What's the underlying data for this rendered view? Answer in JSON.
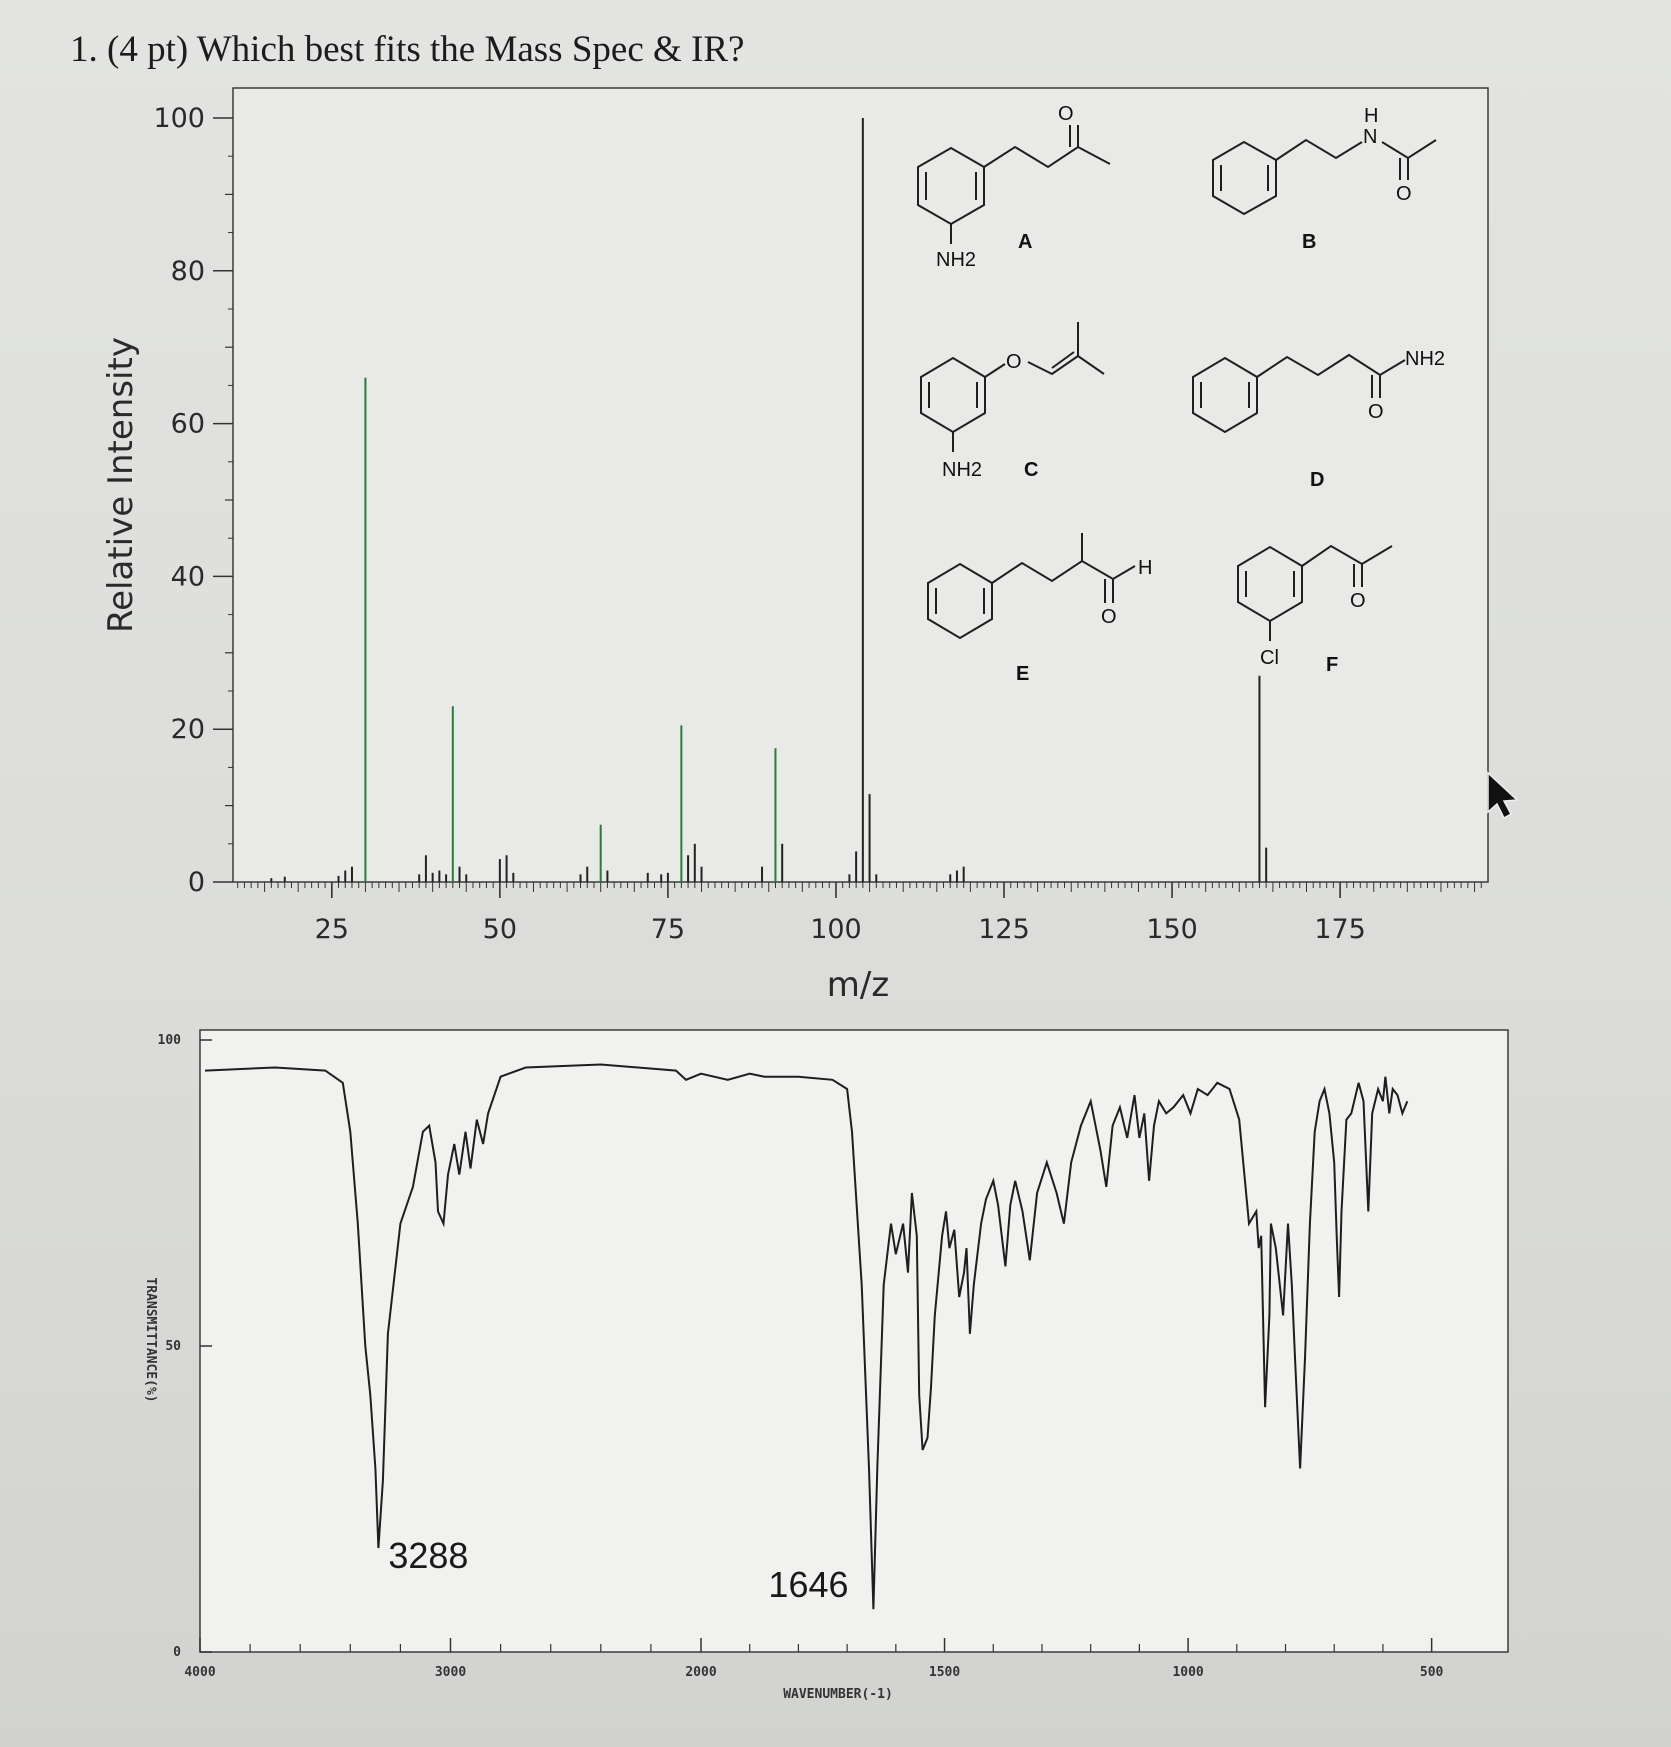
{
  "question": "1. (4 pt) Which best fits the Mass Spec & IR?",
  "chart_data": [
    {
      "type": "bar",
      "title": "",
      "xlabel": "m/z",
      "ylabel": "Relative Intensity",
      "xlim": [
        10,
        190
      ],
      "ylim": [
        0,
        100
      ],
      "x_ticks": [
        "25",
        "50",
        "75",
        "100",
        "125",
        "150",
        "175"
      ],
      "y_ticks": [
        "0",
        "20",
        "40",
        "60",
        "80",
        "100"
      ],
      "peaks": [
        {
          "mz": 16,
          "intensity": 0.5
        },
        {
          "mz": 18,
          "intensity": 0.7
        },
        {
          "mz": 26,
          "intensity": 0.8
        },
        {
          "mz": 27,
          "intensity": 1.5
        },
        {
          "mz": 28,
          "intensity": 2
        },
        {
          "mz": 30,
          "intensity": 66
        },
        {
          "mz": 38,
          "intensity": 1
        },
        {
          "mz": 39,
          "intensity": 3.5
        },
        {
          "mz": 40,
          "intensity": 1.2
        },
        {
          "mz": 41,
          "intensity": 1.5
        },
        {
          "mz": 42,
          "intensity": 1
        },
        {
          "mz": 43,
          "intensity": 23
        },
        {
          "mz": 44,
          "intensity": 2
        },
        {
          "mz": 45,
          "intensity": 1
        },
        {
          "mz": 50,
          "intensity": 3
        },
        {
          "mz": 51,
          "intensity": 3.5
        },
        {
          "mz": 52,
          "intensity": 1.2
        },
        {
          "mz": 62,
          "intensity": 1
        },
        {
          "mz": 63,
          "intensity": 2
        },
        {
          "mz": 65,
          "intensity": 7.5
        },
        {
          "mz": 66,
          "intensity": 1.5
        },
        {
          "mz": 72,
          "intensity": 1.2
        },
        {
          "mz": 74,
          "intensity": 1
        },
        {
          "mz": 75,
          "intensity": 1.2
        },
        {
          "mz": 77,
          "intensity": 20.5
        },
        {
          "mz": 78,
          "intensity": 3.5
        },
        {
          "mz": 79,
          "intensity": 5
        },
        {
          "mz": 80,
          "intensity": 2
        },
        {
          "mz": 89,
          "intensity": 2
        },
        {
          "mz": 91,
          "intensity": 17.5
        },
        {
          "mz": 92,
          "intensity": 5
        },
        {
          "mz": 102,
          "intensity": 1
        },
        {
          "mz": 103,
          "intensity": 4
        },
        {
          "mz": 104,
          "intensity": 100
        },
        {
          "mz": 105,
          "intensity": 11.5
        },
        {
          "mz": 106,
          "intensity": 1
        },
        {
          "mz": 117,
          "intensity": 1
        },
        {
          "mz": 118,
          "intensity": 1.5
        },
        {
          "mz": 119,
          "intensity": 2
        },
        {
          "mz": 163,
          "intensity": 27
        },
        {
          "mz": 164,
          "intensity": 4.5
        }
      ]
    },
    {
      "type": "line",
      "title": "",
      "xlabel": "WAVENUMBER(-1)",
      "ylabel": "TRANSMITTANCE(%)",
      "xlim": [
        4000,
        450
      ],
      "ylim": [
        0,
        100
      ],
      "x_ticks": [
        "4000",
        "3000",
        "2000",
        "1500",
        "1000",
        "500"
      ],
      "y_ticks": [
        "0",
        "50",
        "100"
      ],
      "annotations": [
        {
          "text": "3288",
          "wavenumber": 3288,
          "transmittance": 17
        },
        {
          "text": "1646",
          "wavenumber": 1646,
          "transmittance": 7
        }
      ],
      "spectrum": [
        [
          3980,
          95
        ],
        [
          3700,
          95.5
        ],
        [
          3500,
          95
        ],
        [
          3430,
          93
        ],
        [
          3400,
          85
        ],
        [
          3370,
          70
        ],
        [
          3340,
          50
        ],
        [
          3320,
          42
        ],
        [
          3300,
          30
        ],
        [
          3288,
          17
        ],
        [
          3270,
          28
        ],
        [
          3250,
          52
        ],
        [
          3200,
          70
        ],
        [
          3150,
          76
        ],
        [
          3110,
          85
        ],
        [
          3085,
          86
        ],
        [
          3060,
          80
        ],
        [
          3050,
          72
        ],
        [
          3028,
          70
        ],
        [
          3010,
          78
        ],
        [
          2985,
          83
        ],
        [
          2965,
          78
        ],
        [
          2940,
          85
        ],
        [
          2920,
          79
        ],
        [
          2895,
          87
        ],
        [
          2870,
          83
        ],
        [
          2850,
          88
        ],
        [
          2800,
          94
        ],
        [
          2700,
          95.5
        ],
        [
          2400,
          96
        ],
        [
          2100,
          95
        ],
        [
          2060,
          93.5
        ],
        [
          2000,
          94.5
        ],
        [
          1945,
          93.5
        ],
        [
          1900,
          94.5
        ],
        [
          1870,
          94
        ],
        [
          1800,
          94
        ],
        [
          1730,
          93.5
        ],
        [
          1700,
          92
        ],
        [
          1690,
          85
        ],
        [
          1670,
          60
        ],
        [
          1655,
          30
        ],
        [
          1646,
          7
        ],
        [
          1638,
          30
        ],
        [
          1625,
          60
        ],
        [
          1610,
          70
        ],
        [
          1600,
          65
        ],
        [
          1585,
          70
        ],
        [
          1575,
          62
        ],
        [
          1567,
          75
        ],
        [
          1557,
          68
        ],
        [
          1552,
          42
        ],
        [
          1545,
          33
        ],
        [
          1535,
          35
        ],
        [
          1528,
          43
        ],
        [
          1520,
          55
        ],
        [
          1505,
          68
        ],
        [
          1497,
          72
        ],
        [
          1490,
          66
        ],
        [
          1480,
          69
        ],
        [
          1470,
          58
        ],
        [
          1460,
          62
        ],
        [
          1455,
          66
        ],
        [
          1448,
          52
        ],
        [
          1440,
          60
        ],
        [
          1425,
          70
        ],
        [
          1415,
          74
        ],
        [
          1400,
          77
        ],
        [
          1390,
          73
        ],
        [
          1375,
          63
        ],
        [
          1365,
          73
        ],
        [
          1355,
          77
        ],
        [
          1340,
          72
        ],
        [
          1325,
          64
        ],
        [
          1310,
          75
        ],
        [
          1290,
          80
        ],
        [
          1270,
          75
        ],
        [
          1255,
          70
        ],
        [
          1240,
          80
        ],
        [
          1220,
          86
        ],
        [
          1200,
          90
        ],
        [
          1180,
          82
        ],
        [
          1168,
          76
        ],
        [
          1155,
          86
        ],
        [
          1140,
          89
        ],
        [
          1125,
          84
        ],
        [
          1110,
          91
        ],
        [
          1100,
          84
        ],
        [
          1090,
          88
        ],
        [
          1080,
          77
        ],
        [
          1070,
          86
        ],
        [
          1060,
          90
        ],
        [
          1045,
          88
        ],
        [
          1030,
          89
        ],
        [
          1010,
          91
        ],
        [
          995,
          88
        ],
        [
          980,
          92
        ],
        [
          960,
          91
        ],
        [
          940,
          93
        ],
        [
          915,
          92
        ],
        [
          895,
          87
        ],
        [
          875,
          70
        ],
        [
          860,
          72
        ],
        [
          855,
          66
        ],
        [
          850,
          68
        ],
        [
          842,
          40
        ],
        [
          833,
          55
        ],
        [
          830,
          70
        ],
        [
          820,
          66
        ],
        [
          805,
          55
        ],
        [
          795,
          70
        ],
        [
          787,
          60
        ],
        [
          780,
          47
        ],
        [
          770,
          30
        ],
        [
          760,
          48
        ],
        [
          750,
          70
        ],
        [
          740,
          85
        ],
        [
          730,
          90
        ],
        [
          720,
          92
        ],
        [
          710,
          88
        ],
        [
          700,
          80
        ],
        [
          695,
          68
        ],
        [
          690,
          58
        ],
        [
          685,
          72
        ],
        [
          675,
          87
        ],
        [
          665,
          88
        ],
        [
          650,
          93
        ],
        [
          640,
          90
        ],
        [
          630,
          72
        ],
        [
          622,
          88
        ],
        [
          610,
          92
        ],
        [
          600,
          90
        ],
        [
          595,
          94
        ],
        [
          587,
          88
        ],
        [
          580,
          92
        ],
        [
          570,
          91
        ],
        [
          560,
          88
        ],
        [
          550,
          90
        ]
      ]
    }
  ],
  "structures": {
    "A": {
      "label": "A",
      "substituent": "NH2"
    },
    "B": {
      "label": "B",
      "atom_n": "N",
      "atom_h": "H",
      "atom_o": "O"
    },
    "C": {
      "label": "C",
      "substituent": "NH2",
      "atom_o": "O"
    },
    "D": {
      "label": "D",
      "substituent": "NH2",
      "atom_o": "O"
    },
    "E": {
      "label": "E",
      "atom_h": "H",
      "atom_o": "O"
    },
    "F": {
      "label": "F",
      "substituent": "Cl",
      "atom_o": "O"
    },
    "A_o": "O"
  },
  "colors": {
    "ink": "#1f1f1f",
    "green_bar": "#2a7a3c",
    "bar": "#222222",
    "frame": "#555555"
  },
  "cursor": "mouse-pointer-icon"
}
